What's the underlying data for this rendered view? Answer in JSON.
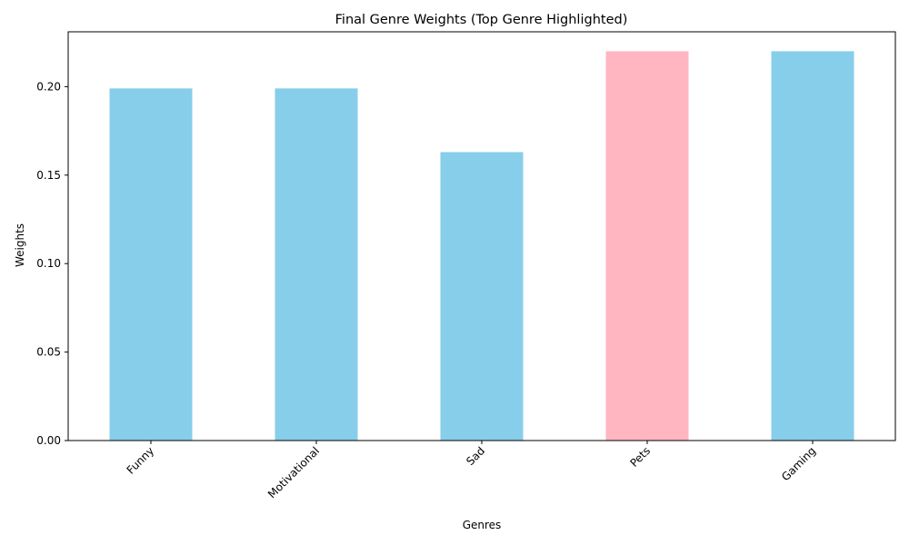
{
  "chart_data": {
    "type": "bar",
    "title": "Final Genre Weights (Top Genre Highlighted)",
    "xlabel": "Genres",
    "ylabel": "Weights",
    "categories": [
      "Funny",
      "Motivational",
      "Sad",
      "Pets",
      "Gaming"
    ],
    "values": [
      0.199,
      0.199,
      0.163,
      0.22,
      0.22
    ],
    "highlighted": "Pets",
    "ylim": [
      0,
      0.231
    ],
    "yticks": [
      "0.00",
      "0.05",
      "0.10",
      "0.15",
      "0.20"
    ],
    "grid": false,
    "colors": {
      "bar": "#87ceeb",
      "highlight": "#ffb6c1",
      "axis": "#000000"
    }
  }
}
